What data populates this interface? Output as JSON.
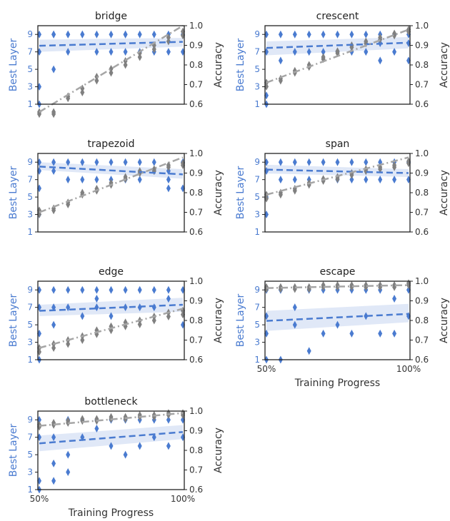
{
  "colors": {
    "layer": "#4a7bd0",
    "accuracy": "#808080",
    "accuracy_line": "#a6a6a6",
    "band": "#d5e0f4",
    "axis_text": "#333333",
    "left_tick_text": "#4a7bd0"
  },
  "chart_data": [
    {
      "type": "scatter",
      "title": "bridge",
      "xlabel": "",
      "x_ticks_shown": false,
      "ylabel_left": "Best Layer",
      "ylabel_right": "Accuracy",
      "ylim_left": [
        1,
        10
      ],
      "ylim_right": [
        0.6,
        1.0
      ],
      "left_ticks": [
        "1",
        "3",
        "5",
        "7",
        "9"
      ],
      "right_ticks": [
        "0.6",
        "0.7",
        "0.8",
        "0.9",
        "1.0"
      ],
      "best_layer": {
        "x": [
          0,
          0,
          0,
          0,
          0.1,
          0.1,
          0.1,
          0.2,
          0.2,
          0.2,
          0.3,
          0.3,
          0.4,
          0.4,
          0.5,
          0.5,
          0.6,
          0.6,
          0.6,
          0.7,
          0.7,
          0.8,
          0.8,
          0.9,
          0.9,
          1,
          1
        ],
        "y": [
          9,
          7,
          3,
          1,
          9,
          5,
          9,
          9,
          7,
          9,
          9,
          9,
          9,
          7,
          9,
          7,
          9,
          7,
          9,
          9,
          7,
          9,
          7,
          9,
          7,
          9,
          7
        ],
        "trend": [
          7.7,
          8.15
        ],
        "band": [
          [
            7.0,
            8.4
          ],
          [
            7.6,
            8.6
          ]
        ]
      },
      "accuracy": {
        "x": [
          0,
          0,
          0.1,
          0.1,
          0.2,
          0.2,
          0.3,
          0.3,
          0.4,
          0.4,
          0.5,
          0.5,
          0.6,
          0.6,
          0.7,
          0.7,
          0.8,
          0.8,
          0.9,
          0.9,
          1,
          1
        ],
        "y": [
          0.56,
          0.55,
          0.56,
          0.55,
          0.64,
          0.63,
          0.68,
          0.66,
          0.74,
          0.72,
          0.78,
          0.76,
          0.82,
          0.8,
          0.86,
          0.84,
          0.9,
          0.88,
          0.94,
          0.92,
          0.97,
          0.95
        ],
        "trend": [
          0.56,
          1.0
        ]
      }
    },
    {
      "type": "scatter",
      "title": "crescent",
      "xlabel": "",
      "x_ticks_shown": false,
      "ylabel_left": "Best Layer",
      "ylabel_right": "Accuracy",
      "ylim_left": [
        1,
        10
      ],
      "ylim_right": [
        0.6,
        1.0
      ],
      "left_ticks": [
        "1",
        "3",
        "5",
        "7",
        "9"
      ],
      "right_ticks": [
        "0.6",
        "0.7",
        "0.8",
        "0.9",
        "1.0"
      ],
      "best_layer": {
        "x": [
          0,
          0,
          0,
          0,
          0.1,
          0.1,
          0.2,
          0.2,
          0.3,
          0.3,
          0.4,
          0.4,
          0.5,
          0.5,
          0.6,
          0.6,
          0.7,
          0.7,
          0.8,
          0.8,
          0.8,
          0.9,
          0.9,
          1,
          1,
          1
        ],
        "y": [
          9,
          7,
          2,
          1,
          9,
          6,
          9,
          7,
          9,
          7,
          9,
          7,
          9,
          7,
          9,
          7,
          9,
          7,
          9,
          8,
          6,
          9,
          7,
          9,
          8,
          6
        ],
        "trend": [
          7.45,
          8.05
        ],
        "band": [
          [
            6.6,
            8.2
          ],
          [
            7.4,
            8.7
          ]
        ]
      },
      "accuracy": {
        "x": [
          0,
          0,
          0.1,
          0.1,
          0.2,
          0.2,
          0.3,
          0.3,
          0.4,
          0.4,
          0.5,
          0.5,
          0.6,
          0.6,
          0.7,
          0.7,
          0.8,
          0.8,
          0.9,
          0.9,
          1,
          1
        ],
        "y": [
          0.71,
          0.69,
          0.73,
          0.72,
          0.77,
          0.76,
          0.8,
          0.79,
          0.84,
          0.83,
          0.87,
          0.86,
          0.9,
          0.89,
          0.92,
          0.91,
          0.94,
          0.93,
          0.96,
          0.95,
          0.98,
          0.97
        ],
        "trend": [
          0.71,
          0.98
        ]
      }
    },
    {
      "type": "scatter",
      "title": "trapezoid",
      "xlabel": "",
      "x_ticks_shown": false,
      "ylabel_left": "Best Layer",
      "ylabel_right": "Accuracy",
      "ylim_left": [
        1,
        10
      ],
      "ylim_right": [
        0.6,
        1.0
      ],
      "left_ticks": [
        "1",
        "3",
        "5",
        "7",
        "9"
      ],
      "right_ticks": [
        "0.6",
        "0.7",
        "0.8",
        "0.9",
        "1.0"
      ],
      "best_layer": {
        "x": [
          0,
          0,
          0,
          0,
          0.1,
          0.1,
          0.2,
          0.2,
          0.3,
          0.3,
          0.4,
          0.4,
          0.5,
          0.5,
          0.6,
          0.6,
          0.7,
          0.7,
          0.8,
          0.8,
          0.9,
          0.9,
          0.9,
          1,
          1
        ],
        "y": [
          9,
          8,
          6,
          3,
          9,
          8,
          9,
          7,
          9,
          7,
          9,
          7,
          9,
          7,
          9,
          7,
          9,
          7,
          9,
          8,
          8,
          7,
          6,
          9,
          6
        ],
        "trend": [
          8.5,
          7.6
        ],
        "band": [
          [
            8.1,
            9.0
          ],
          [
            7.1,
            8.2
          ]
        ]
      },
      "accuracy": {
        "x": [
          0,
          0,
          0.1,
          0.1,
          0.2,
          0.2,
          0.3,
          0.3,
          0.4,
          0.4,
          0.5,
          0.5,
          0.6,
          0.6,
          0.7,
          0.7,
          0.8,
          0.8,
          0.9,
          0.9,
          1,
          1
        ],
        "y": [
          0.71,
          0.69,
          0.72,
          0.71,
          0.75,
          0.74,
          0.8,
          0.79,
          0.82,
          0.81,
          0.85,
          0.84,
          0.88,
          0.87,
          0.91,
          0.9,
          0.92,
          0.91,
          0.94,
          0.93,
          0.95,
          0.94
        ],
        "trend": [
          0.7,
          0.98
        ]
      }
    },
    {
      "type": "scatter",
      "title": "span",
      "xlabel": "",
      "x_ticks_shown": false,
      "ylabel_left": "Best Layer",
      "ylabel_right": "Accuracy",
      "ylim_left": [
        1,
        10
      ],
      "ylim_right": [
        0.6,
        1.0
      ],
      "left_ticks": [
        "1",
        "3",
        "5",
        "7",
        "9"
      ],
      "right_ticks": [
        "0.6",
        "0.7",
        "0.8",
        "0.9",
        "1.0"
      ],
      "best_layer": {
        "x": [
          0,
          0,
          0,
          0,
          0.1,
          0.1,
          0.2,
          0.2,
          0.3,
          0.3,
          0.4,
          0.4,
          0.5,
          0.5,
          0.6,
          0.6,
          0.7,
          0.7,
          0.8,
          0.8,
          0.9,
          0.9,
          1,
          1
        ],
        "y": [
          9,
          8,
          5,
          3,
          9,
          7,
          9,
          7,
          9,
          7,
          9,
          7,
          9,
          7,
          9,
          7,
          9,
          7,
          9,
          7,
          9,
          7,
          9,
          7
        ],
        "trend": [
          8.15,
          7.75
        ],
        "band": [
          [
            7.7,
            8.7
          ],
          [
            7.3,
            8.2
          ]
        ]
      },
      "accuracy": {
        "x": [
          0,
          0,
          0.1,
          0.1,
          0.2,
          0.2,
          0.3,
          0.3,
          0.4,
          0.4,
          0.5,
          0.5,
          0.6,
          0.6,
          0.7,
          0.7,
          0.8,
          0.8,
          0.9,
          0.9,
          1,
          1
        ],
        "y": [
          0.79,
          0.77,
          0.8,
          0.79,
          0.82,
          0.81,
          0.85,
          0.84,
          0.87,
          0.86,
          0.88,
          0.87,
          0.9,
          0.89,
          0.92,
          0.91,
          0.93,
          0.92,
          0.94,
          0.93,
          0.96,
          0.95
        ],
        "trend": [
          0.79,
          0.98
        ]
      }
    },
    {
      "type": "scatter",
      "title": "edge",
      "xlabel": "",
      "x_ticks_shown": false,
      "ylabel_left": "Best Layer",
      "ylabel_right": "Accuracy",
      "ylim_left": [
        1,
        10
      ],
      "ylim_right": [
        0.6,
        1.0
      ],
      "left_ticks": [
        "1",
        "3",
        "5",
        "7",
        "9"
      ],
      "right_ticks": [
        "0.6",
        "0.7",
        "0.8",
        "0.9",
        "1.0"
      ],
      "best_layer": {
        "x": [
          0,
          0,
          0,
          0,
          0.1,
          0.1,
          0.1,
          0.2,
          0.2,
          0.3,
          0.3,
          0.4,
          0.4,
          0.4,
          0.5,
          0.5,
          0.6,
          0.6,
          0.7,
          0.7,
          0.8,
          0.8,
          0.9,
          0.9,
          1,
          1
        ],
        "y": [
          9,
          7,
          4,
          1,
          9,
          7,
          5,
          9,
          7,
          9,
          6,
          9,
          8,
          7,
          9,
          6,
          9,
          7,
          9,
          7,
          9,
          7,
          9,
          8,
          9,
          5
        ],
        "trend": [
          6.6,
          7.3
        ],
        "band": [
          [
            6.0,
            7.3
          ],
          [
            6.5,
            8.1
          ]
        ]
      },
      "accuracy": {
        "x": [
          0,
          0,
          0.1,
          0.1,
          0.2,
          0.2,
          0.3,
          0.3,
          0.4,
          0.4,
          0.5,
          0.5,
          0.6,
          0.6,
          0.7,
          0.7,
          0.8,
          0.8,
          0.9,
          0.9,
          1,
          1
        ],
        "y": [
          0.66,
          0.64,
          0.68,
          0.66,
          0.7,
          0.68,
          0.72,
          0.7,
          0.75,
          0.73,
          0.77,
          0.75,
          0.79,
          0.77,
          0.8,
          0.78,
          0.82,
          0.8,
          0.84,
          0.82,
          0.85,
          0.83
        ],
        "trend": [
          0.66,
          0.86
        ]
      }
    },
    {
      "type": "scatter",
      "title": "escape",
      "xlabel": "Training Progress",
      "x_ticks_shown": true,
      "x_ticks": [
        "50%",
        "100%"
      ],
      "ylabel_left": "Best Layer",
      "ylabel_right": "Accuracy",
      "ylim_left": [
        1,
        10
      ],
      "ylim_right": [
        0.6,
        1.0
      ],
      "left_ticks": [
        "1",
        "3",
        "5",
        "7",
        "9"
      ],
      "right_ticks": [
        "0.6",
        "0.7",
        "0.8",
        "0.9",
        "1.0"
      ],
      "best_layer": {
        "x": [
          0,
          0,
          0,
          0,
          0.1,
          0.1,
          0.2,
          0.2,
          0.3,
          0.3,
          0.4,
          0.4,
          0.5,
          0.5,
          0.6,
          0.6,
          0.7,
          0.7,
          0.8,
          0.8,
          0.9,
          0.9,
          1,
          1
        ],
        "y": [
          9,
          6,
          4,
          1,
          9,
          1,
          7,
          5,
          9,
          2,
          9,
          4,
          9,
          5,
          9,
          4,
          9,
          6,
          9,
          4,
          8,
          4,
          9,
          6
        ],
        "trend": [
          5.45,
          6.25
        ],
        "band": [
          [
            4.3,
            6.6
          ],
          [
            5.3,
            7.4
          ]
        ]
      },
      "accuracy": {
        "x": [
          0,
          0,
          0.1,
          0.1,
          0.2,
          0.2,
          0.3,
          0.3,
          0.4,
          0.4,
          0.5,
          0.5,
          0.6,
          0.6,
          0.7,
          0.7,
          0.8,
          0.8,
          0.9,
          0.9,
          1,
          1
        ],
        "y": [
          0.97,
          0.96,
          0.97,
          0.96,
          0.97,
          0.96,
          0.97,
          0.96,
          0.98,
          0.97,
          0.98,
          0.97,
          0.98,
          0.97,
          0.98,
          0.97,
          0.98,
          0.97,
          0.98,
          0.97,
          0.99,
          0.98
        ],
        "trend": [
          0.965,
          0.98
        ]
      }
    },
    {
      "type": "scatter",
      "title": "bottleneck",
      "xlabel": "Training Progress",
      "x_ticks_shown": true,
      "x_ticks": [
        "50%",
        "100%"
      ],
      "ylabel_left": "Best Layer",
      "ylabel_right": "Accuracy",
      "ylim_left": [
        1,
        10
      ],
      "ylim_right": [
        0.6,
        1.0
      ],
      "left_ticks": [
        "1",
        "3",
        "5",
        "7",
        "9"
      ],
      "right_ticks": [
        "0.6",
        "0.7",
        "0.8",
        "0.9",
        "1.0"
      ],
      "best_layer": {
        "x": [
          0,
          0,
          0,
          0,
          0.1,
          0.1,
          0.1,
          0.2,
          0.2,
          0.2,
          0.3,
          0.3,
          0.4,
          0.4,
          0.5,
          0.5,
          0.6,
          0.6,
          0.7,
          0.7,
          0.8,
          0.8,
          0.9,
          0.9,
          1,
          1
        ],
        "y": [
          9,
          7,
          2,
          1,
          7,
          4,
          2,
          9,
          5,
          3,
          9,
          7,
          9,
          8,
          9,
          6,
          9,
          5,
          9,
          6,
          9,
          7,
          9,
          6,
          9,
          7
        ],
        "trend": [
          6.3,
          7.6
        ],
        "band": [
          [
            5.4,
            7.2
          ],
          [
            6.8,
            8.4
          ]
        ]
      },
      "accuracy": {
        "x": [
          0,
          0,
          0.1,
          0.1,
          0.2,
          0.2,
          0.3,
          0.3,
          0.4,
          0.4,
          0.5,
          0.5,
          0.6,
          0.6,
          0.7,
          0.7,
          0.8,
          0.8,
          0.9,
          0.9,
          1,
          1
        ],
        "y": [
          0.93,
          0.92,
          0.94,
          0.93,
          0.95,
          0.94,
          0.96,
          0.95,
          0.96,
          0.95,
          0.97,
          0.96,
          0.97,
          0.96,
          0.98,
          0.97,
          0.98,
          0.97,
          0.99,
          0.98,
          0.99,
          0.98
        ],
        "trend": [
          0.925,
          0.99
        ]
      }
    }
  ]
}
